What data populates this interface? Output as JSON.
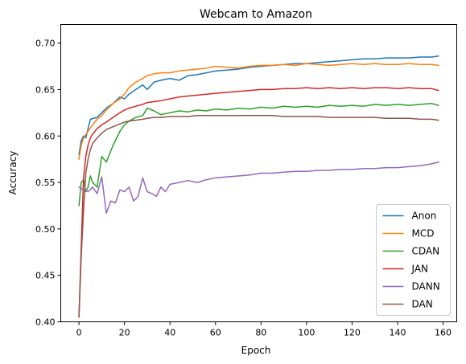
{
  "chart_data": {
    "type": "line",
    "title": "Webcam to Amazon",
    "xlabel": "Epoch",
    "ylabel": "Accuracy",
    "xlim": [
      -8,
      166
    ],
    "ylim": [
      0.4,
      0.72
    ],
    "xticks": [
      0,
      20,
      40,
      60,
      80,
      100,
      120,
      140,
      160
    ],
    "yticks": [
      0.4,
      0.45,
      0.5,
      0.55,
      0.6,
      0.65,
      0.7
    ],
    "grid": false,
    "legend_position": "lower-right",
    "series": [
      {
        "name": "Anon",
        "color": "#1f77b4",
        "x": [
          0,
          1,
          2,
          3,
          5,
          8,
          10,
          12,
          15,
          18,
          20,
          22,
          25,
          28,
          30,
          33,
          36,
          40,
          44,
          48,
          52,
          56,
          60,
          65,
          70,
          75,
          80,
          85,
          90,
          95,
          100,
          105,
          110,
          115,
          120,
          125,
          130,
          135,
          140,
          145,
          150,
          155,
          158
        ],
        "y": [
          0.58,
          0.595,
          0.6,
          0.598,
          0.618,
          0.62,
          0.625,
          0.63,
          0.635,
          0.642,
          0.64,
          0.645,
          0.65,
          0.655,
          0.65,
          0.658,
          0.66,
          0.662,
          0.66,
          0.665,
          0.666,
          0.668,
          0.67,
          0.671,
          0.672,
          0.674,
          0.675,
          0.676,
          0.677,
          0.678,
          0.678,
          0.679,
          0.68,
          0.681,
          0.682,
          0.683,
          0.683,
          0.684,
          0.684,
          0.684,
          0.685,
          0.685,
          0.686
        ]
      },
      {
        "name": "MCD",
        "color": "#ff7f0e",
        "x": [
          0,
          1,
          2,
          4,
          6,
          8,
          10,
          12,
          15,
          18,
          20,
          22,
          25,
          28,
          30,
          33,
          36,
          40,
          44,
          48,
          52,
          56,
          60,
          65,
          70,
          75,
          80,
          85,
          90,
          95,
          100,
          105,
          110,
          115,
          120,
          125,
          130,
          135,
          140,
          145,
          150,
          155,
          158
        ],
        "y": [
          0.575,
          0.59,
          0.598,
          0.605,
          0.612,
          0.618,
          0.622,
          0.628,
          0.635,
          0.64,
          0.645,
          0.652,
          0.658,
          0.662,
          0.665,
          0.667,
          0.668,
          0.668,
          0.67,
          0.671,
          0.672,
          0.673,
          0.675,
          0.674,
          0.673,
          0.675,
          0.676,
          0.676,
          0.677,
          0.676,
          0.678,
          0.677,
          0.676,
          0.677,
          0.678,
          0.677,
          0.678,
          0.677,
          0.677,
          0.678,
          0.677,
          0.677,
          0.676
        ]
      },
      {
        "name": "CDAN",
        "color": "#2ca02c",
        "x": [
          0,
          1,
          2,
          3,
          4,
          5,
          6,
          8,
          10,
          12,
          15,
          18,
          20,
          22,
          25,
          28,
          30,
          33,
          36,
          40,
          44,
          48,
          52,
          56,
          60,
          65,
          70,
          75,
          80,
          85,
          90,
          95,
          100,
          105,
          110,
          115,
          120,
          125,
          130,
          135,
          140,
          145,
          150,
          155,
          158
        ],
        "y": [
          0.525,
          0.55,
          0.553,
          0.54,
          0.545,
          0.557,
          0.55,
          0.545,
          0.578,
          0.572,
          0.59,
          0.605,
          0.612,
          0.616,
          0.62,
          0.622,
          0.63,
          0.627,
          0.623,
          0.625,
          0.627,
          0.626,
          0.628,
          0.627,
          0.629,
          0.628,
          0.63,
          0.629,
          0.631,
          0.63,
          0.632,
          0.631,
          0.632,
          0.631,
          0.633,
          0.632,
          0.633,
          0.632,
          0.634,
          0.633,
          0.634,
          0.633,
          0.634,
          0.635,
          0.633
        ]
      },
      {
        "name": "JAN",
        "color": "#d62728",
        "x": [
          0,
          1,
          2,
          3,
          4,
          5,
          6,
          8,
          10,
          12,
          15,
          18,
          20,
          22,
          25,
          28,
          30,
          33,
          36,
          40,
          44,
          48,
          52,
          56,
          60,
          65,
          70,
          75,
          80,
          85,
          90,
          95,
          100,
          105,
          110,
          115,
          120,
          125,
          130,
          135,
          140,
          145,
          150,
          155,
          158
        ],
        "y": [
          0.405,
          0.48,
          0.555,
          0.578,
          0.59,
          0.598,
          0.602,
          0.608,
          0.612,
          0.615,
          0.62,
          0.625,
          0.628,
          0.63,
          0.632,
          0.634,
          0.636,
          0.637,
          0.638,
          0.64,
          0.642,
          0.643,
          0.644,
          0.645,
          0.646,
          0.647,
          0.648,
          0.649,
          0.65,
          0.65,
          0.651,
          0.651,
          0.652,
          0.651,
          0.652,
          0.651,
          0.652,
          0.651,
          0.652,
          0.652,
          0.651,
          0.652,
          0.651,
          0.651,
          0.649
        ]
      },
      {
        "name": "DANN",
        "color": "#9467bd",
        "x": [
          0,
          2,
          4,
          6,
          8,
          10,
          12,
          14,
          16,
          18,
          20,
          22,
          24,
          26,
          28,
          30,
          32,
          34,
          36,
          38,
          40,
          44,
          48,
          52,
          56,
          60,
          65,
          70,
          75,
          80,
          85,
          90,
          95,
          100,
          105,
          110,
          115,
          120,
          125,
          130,
          135,
          140,
          145,
          150,
          155,
          158
        ],
        "y": [
          0.545,
          0.542,
          0.54,
          0.545,
          0.538,
          0.556,
          0.517,
          0.53,
          0.528,
          0.542,
          0.54,
          0.545,
          0.53,
          0.535,
          0.555,
          0.54,
          0.538,
          0.535,
          0.545,
          0.54,
          0.548,
          0.55,
          0.552,
          0.55,
          0.553,
          0.555,
          0.556,
          0.557,
          0.558,
          0.56,
          0.56,
          0.561,
          0.562,
          0.562,
          0.563,
          0.563,
          0.564,
          0.564,
          0.565,
          0.565,
          0.566,
          0.566,
          0.567,
          0.568,
          0.57,
          0.572
        ]
      },
      {
        "name": "DAN",
        "color": "#8c564b",
        "x": [
          0,
          1,
          2,
          3,
          4,
          5,
          6,
          8,
          10,
          12,
          15,
          18,
          20,
          22,
          25,
          28,
          30,
          33,
          36,
          40,
          44,
          48,
          52,
          56,
          60,
          65,
          70,
          75,
          80,
          85,
          90,
          95,
          100,
          105,
          110,
          115,
          120,
          125,
          130,
          135,
          140,
          145,
          150,
          155,
          158
        ],
        "y": [
          0.405,
          0.47,
          0.52,
          0.56,
          0.575,
          0.585,
          0.592,
          0.598,
          0.603,
          0.607,
          0.61,
          0.613,
          0.615,
          0.616,
          0.617,
          0.618,
          0.619,
          0.62,
          0.62,
          0.621,
          0.621,
          0.621,
          0.622,
          0.622,
          0.622,
          0.622,
          0.622,
          0.622,
          0.622,
          0.622,
          0.621,
          0.621,
          0.621,
          0.621,
          0.62,
          0.62,
          0.62,
          0.62,
          0.62,
          0.619,
          0.619,
          0.619,
          0.618,
          0.618,
          0.617
        ]
      }
    ]
  }
}
